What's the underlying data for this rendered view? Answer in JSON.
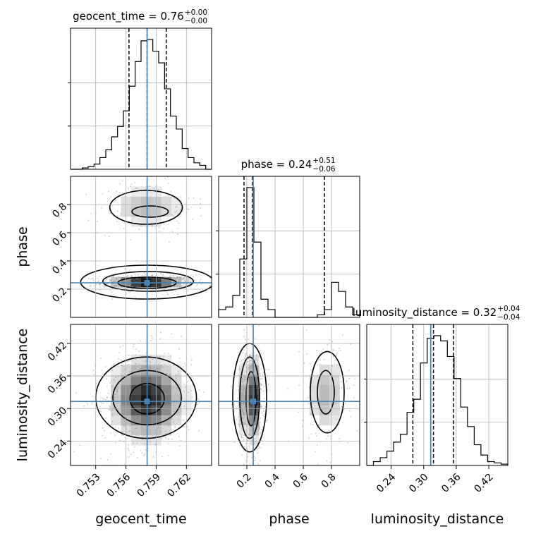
{
  "chart_data": {
    "type": "corner",
    "truth_color": "#4682b4",
    "parameters": [
      {
        "name": "geocent_time",
        "label": "geocent_time",
        "title": {
          "base": "geocent_time = 0.76",
          "plus": "+0.00",
          "minus": "−0.00"
        },
        "range": [
          0.7505,
          0.7645
        ],
        "ticks": [
          0.753,
          0.756,
          0.759,
          0.762
        ],
        "tick_labels": [
          "0.753",
          "0.756",
          "0.759",
          "0.762"
        ],
        "truth": 0.7581,
        "quantiles": [
          0.7563,
          0.7581,
          0.76
        ],
        "hist_bins": [
          0.0,
          0.0,
          0.01,
          0.02,
          0.04,
          0.09,
          0.15,
          0.25,
          0.33,
          0.45,
          0.64,
          0.83,
          0.99,
          1.0,
          0.91,
          0.82,
          0.62,
          0.41,
          0.31,
          0.16,
          0.09,
          0.05,
          0.03,
          0.0
        ]
      },
      {
        "name": "phase",
        "label": "phase",
        "title": {
          "base": "phase = 0.24",
          "plus": "+0.51",
          "minus": "−0.06"
        },
        "range": [
          0.0,
          1.0
        ],
        "ticks": [
          0.2,
          0.4,
          0.6,
          0.8
        ],
        "tick_labels": [
          "0.2",
          "0.4",
          "0.6",
          "0.8"
        ],
        "truth": 0.245,
        "quantiles": [
          0.18,
          0.24,
          0.75
        ],
        "hist_bins": [
          0.06,
          0.08,
          0.17,
          0.45,
          1.0,
          0.58,
          0.14,
          0.06,
          0.0,
          0.0,
          0.0,
          0.0,
          0.0,
          0.0,
          0.02,
          0.06,
          0.27,
          0.2,
          0.08,
          0.02
        ]
      },
      {
        "name": "luminosity_distance",
        "label": "luminosity_distance",
        "title": {
          "base": "luminosity_distance = 0.32",
          "plus": "+0.04",
          "minus": "−0.04"
        },
        "range": [
          0.195,
          0.455
        ],
        "ticks": [
          0.24,
          0.3,
          0.36,
          0.42
        ],
        "tick_labels": [
          "0.24",
          "0.30",
          "0.36",
          "0.42"
        ],
        "truth": 0.313,
        "quantiles": [
          0.28,
          0.318,
          0.355
        ],
        "hist_bins": [
          0.0,
          0.03,
          0.06,
          0.11,
          0.18,
          0.24,
          0.41,
          0.51,
          0.79,
          0.98,
          1.0,
          0.96,
          0.84,
          0.67,
          0.45,
          0.3,
          0.16,
          0.08,
          0.03,
          0.02,
          0.01
        ]
      }
    ],
    "pairs": [
      {
        "x": "geocent_time",
        "y": "phase",
        "modes": [
          {
            "cx": 0.7581,
            "cy": 0.245,
            "sx": 0.0018,
            "sy": 0.022,
            "w": 1.0
          },
          {
            "cx": 0.7581,
            "cy": 0.78,
            "sx": 0.0019,
            "sy": 0.075,
            "w": 0.3
          }
        ],
        "contours": [
          {
            "cx": 0.7581,
            "cy": 0.245,
            "rx": 0.0029,
            "ry": 0.04,
            "core": true
          },
          {
            "cx": 0.7582,
            "cy": 0.255,
            "rx": 0.0045,
            "ry": 0.07
          },
          {
            "cx": 0.7581,
            "cy": 0.25,
            "rx": 0.0066,
            "ry": 0.12
          },
          {
            "cx": 0.7584,
            "cy": 0.75,
            "rx": 0.0018,
            "ry": 0.04
          },
          {
            "cx": 0.758,
            "cy": 0.78,
            "rx": 0.0036,
            "ry": 0.12
          }
        ]
      },
      {
        "x": "geocent_time",
        "y": "luminosity_distance",
        "modes": [
          {
            "cx": 0.7581,
            "cy": 0.318,
            "sx": 0.0018,
            "sy": 0.037,
            "w": 1.0
          }
        ],
        "contours": [
          {
            "cx": 0.7581,
            "cy": 0.318,
            "rx": 0.0017,
            "ry": 0.028,
            "core": true
          },
          {
            "cx": 0.7581,
            "cy": 0.32,
            "rx": 0.0034,
            "ry": 0.05
          },
          {
            "cx": 0.758,
            "cy": 0.32,
            "rx": 0.005,
            "ry": 0.075
          }
        ]
      },
      {
        "x": "phase",
        "y": "luminosity_distance",
        "modes": [
          {
            "cx": 0.23,
            "cy": 0.318,
            "sx": 0.035,
            "sy": 0.037,
            "w": 1.0
          },
          {
            "cx": 0.76,
            "cy": 0.325,
            "sx": 0.07,
            "sy": 0.04,
            "w": 0.3
          }
        ],
        "contours": [
          {
            "cx": 0.23,
            "cy": 0.318,
            "rx": 0.035,
            "ry": 0.05,
            "core": true
          },
          {
            "cx": 0.22,
            "cy": 0.32,
            "rx": 0.07,
            "ry": 0.075
          },
          {
            "cx": 0.22,
            "cy": 0.32,
            "rx": 0.12,
            "ry": 0.1
          },
          {
            "cx": 0.76,
            "cy": 0.33,
            "rx": 0.06,
            "ry": 0.04
          },
          {
            "cx": 0.77,
            "cy": 0.33,
            "rx": 0.12,
            "ry": 0.075
          }
        ]
      }
    ]
  }
}
